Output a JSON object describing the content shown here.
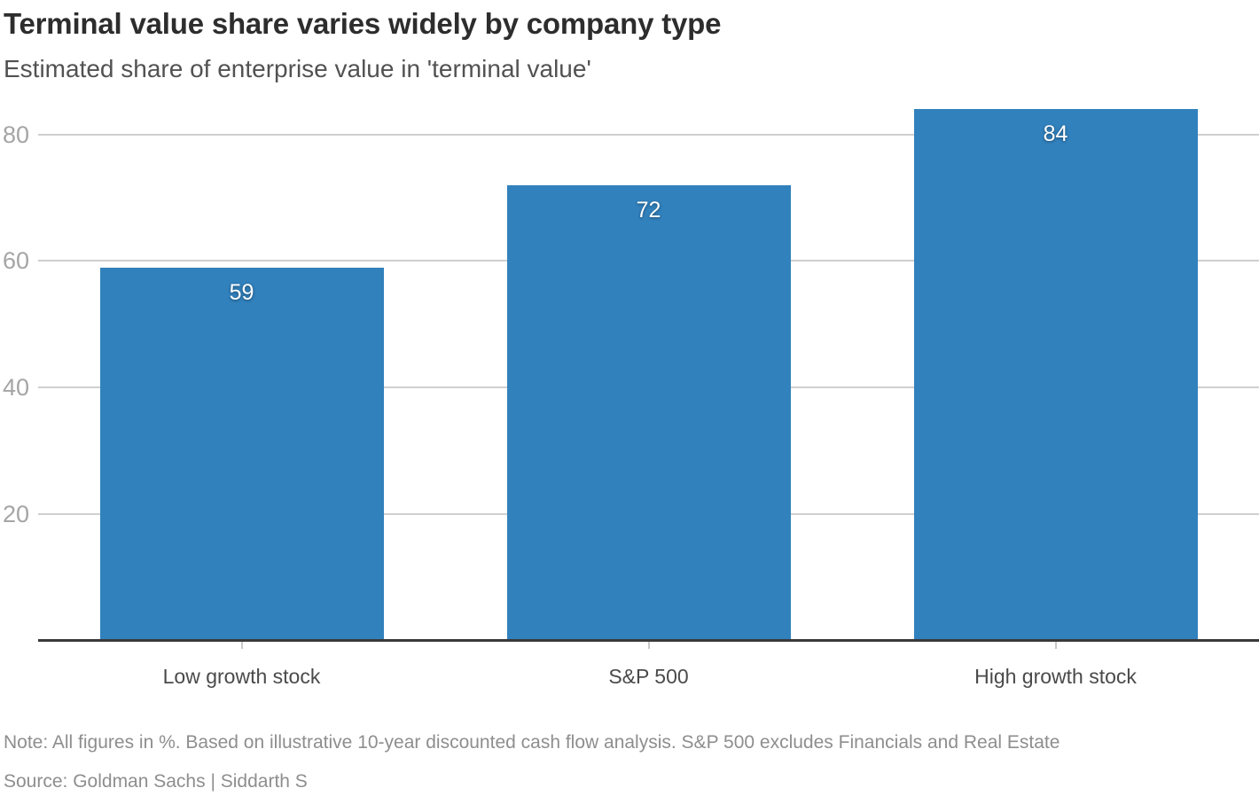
{
  "chart_data": {
    "type": "bar",
    "title": "Terminal value share varies widely by company type",
    "subtitle": "Estimated share of enterprise value in 'terminal value'",
    "categories": [
      "Low growth stock",
      "S&P 500",
      "High growth stock"
    ],
    "values": [
      59,
      72,
      84
    ],
    "value_labels": [
      "59",
      "72",
      "84"
    ],
    "yticks": [
      20,
      40,
      60,
      80
    ],
    "ylim": [
      0,
      84
    ],
    "grid": "horizontal",
    "legend": "none",
    "bar_color": "#3181bd",
    "value_label_color": "#ffffff",
    "note": "Note: All figures in %. Based on illustrative 10-year discounted cash flow analysis. S&P 500 excludes Financials and Real Estate",
    "source": "Source: Goldman Sachs | Siddarth S"
  }
}
